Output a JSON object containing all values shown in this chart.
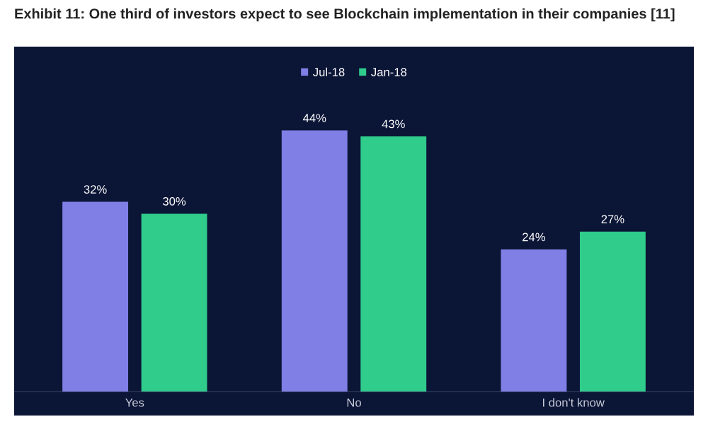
{
  "chart_data": {
    "type": "bar",
    "title": "Exhibit 11: One third of investors expect to see Blockchain implementation in their companies [11]",
    "categories": [
      "Yes",
      "No",
      "I don't know"
    ],
    "series": [
      {
        "name": "Jul-18",
        "color": "#7f7fe6",
        "values": [
          32,
          44,
          24
        ],
        "value_labels": [
          "32%",
          "44%",
          "24%"
        ]
      },
      {
        "name": "Jan-18",
        "color": "#2fcc8b",
        "values": [
          30,
          43,
          27
        ],
        "value_labels": [
          "30%",
          "43%",
          "27%"
        ]
      }
    ],
    "legend": "top",
    "grid": false,
    "tick_labels": "x"
  }
}
